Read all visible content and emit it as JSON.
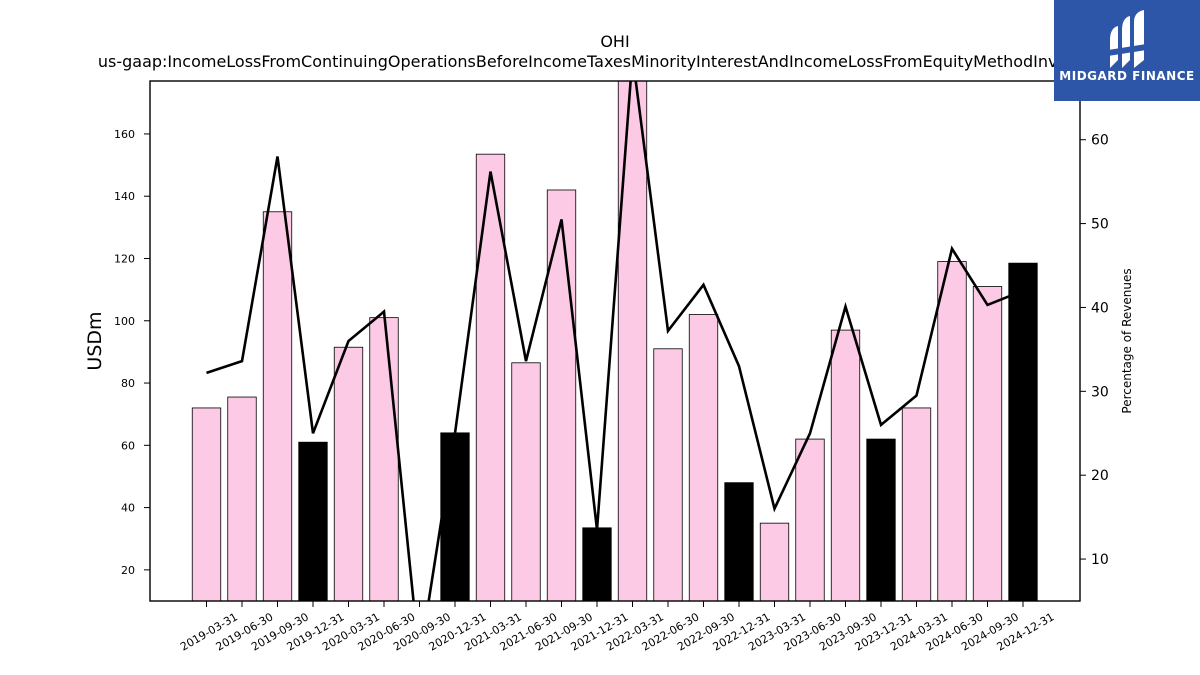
{
  "chart_data": {
    "type": "bar",
    "title": "OHI",
    "subtitle": "us-gaap:IncomeLossFromContinuingOperationsBeforeIncomeTaxesMinorityInterestAndIncomeLossFromEquityMethodInvestments",
    "ylabel": "USDm",
    "y2label": "Percentage of Revenues",
    "ylim": [
      10,
      177
    ],
    "y2lim": [
      5,
      67
    ],
    "yticks": [
      20,
      40,
      60,
      80,
      100,
      120,
      140,
      160
    ],
    "y2ticks": [
      10,
      20,
      30,
      40,
      50,
      60
    ],
    "categories": [
      "2019-03-31",
      "2019-06-30",
      "2019-09-30",
      "2019-12-31",
      "2020-03-31",
      "2020-06-30",
      "2020-09-30",
      "2020-12-31",
      "2021-03-31",
      "2021-06-30",
      "2021-09-30",
      "2021-12-31",
      "2022-03-31",
      "2022-06-30",
      "2022-09-30",
      "2022-12-31",
      "2023-03-31",
      "2023-06-30",
      "2023-09-30",
      "2023-12-31",
      "2024-03-31",
      "2024-06-30",
      "2024-09-30",
      "2024-12-31"
    ],
    "series": [
      {
        "kind": "bar",
        "values": [
          72,
          75.5,
          135,
          61,
          91.5,
          101,
          null,
          64,
          153.5,
          86.5,
          142,
          33.5,
          180,
          91,
          102,
          48,
          35,
          62,
          97,
          62,
          72,
          119,
          111,
          118.5
        ],
        "highlight": [
          false,
          false,
          false,
          true,
          false,
          false,
          false,
          true,
          false,
          false,
          false,
          true,
          false,
          false,
          false,
          true,
          false,
          false,
          false,
          true,
          false,
          false,
          false,
          true
        ]
      },
      {
        "kind": "line",
        "axis": "right",
        "values": [
          32.2,
          33.6,
          58,
          25,
          36,
          39.5,
          -2,
          25,
          56.2,
          33.6,
          50.5,
          13.5,
          70,
          37.2,
          42.7,
          33,
          16,
          25,
          40.1,
          26,
          29.5,
          47,
          40.3,
          42
        ]
      }
    ],
    "colors": {
      "bar": "#fccae4",
      "highlight_bar": "#000000",
      "line": "#000000"
    },
    "grid": false
  },
  "logo": {
    "text": "MIDGARD FINANCE",
    "bg": "#2e56a8"
  }
}
